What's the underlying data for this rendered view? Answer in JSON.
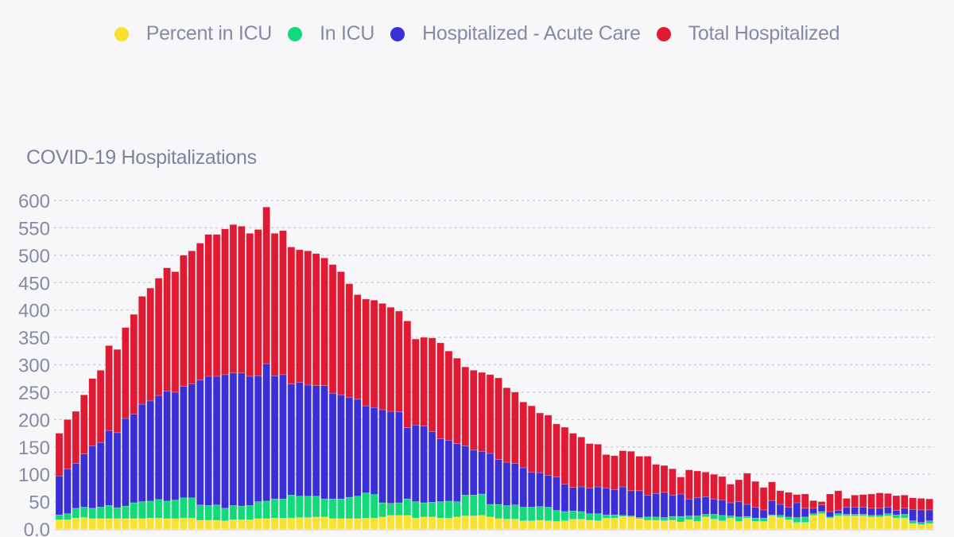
{
  "chart_data": {
    "type": "bar",
    "barmode": "stack",
    "title": "COVID-19 Hospitalizations",
    "xlabel": "",
    "ylabel": "",
    "ylim": [
      0,
      600
    ],
    "yticks": [
      "0.0",
      "50",
      "100",
      "150",
      "200",
      "250",
      "300",
      "350",
      "400",
      "450",
      "500",
      "550",
      "600"
    ],
    "ytick_values": [
      0,
      50,
      100,
      150,
      200,
      250,
      300,
      350,
      400,
      450,
      500,
      550,
      600
    ],
    "grid": true,
    "legend_position": "top-center",
    "legend": [
      {
        "name": "Percent in ICU",
        "color": "#f9e12f"
      },
      {
        "name": "In ICU",
        "color": "#12d97a"
      },
      {
        "name": "Hospitalized - Acute Care",
        "color": "#3a2fd6"
      },
      {
        "name": "Total Hospitalized",
        "color": "#e01a32"
      }
    ],
    "note": "Values are cumulative stack boundaries estimated from gridlines: top of yellow, top of green, top of blue, top of red (total).",
    "series": [
      {
        "name": "Percent in ICU",
        "values": [
          17,
          17,
          20,
          21,
          19,
          19,
          19,
          19,
          19,
          19,
          19,
          20,
          20,
          19,
          19,
          20,
          20,
          16,
          16,
          16,
          15,
          17,
          17,
          17,
          19,
          19,
          20,
          20,
          20,
          21,
          21,
          22,
          22,
          19,
          19,
          19,
          19,
          20,
          20,
          22,
          25,
          25,
          25,
          20,
          22,
          22,
          20,
          20,
          22,
          24,
          24,
          25,
          22,
          19,
          18,
          18,
          15,
          15,
          16,
          15,
          14,
          15,
          18,
          18,
          16,
          15,
          20,
          20,
          23,
          22,
          19,
          16,
          16,
          15,
          16,
          13,
          17,
          14,
          22,
          18,
          15,
          20,
          14,
          20,
          14,
          14,
          24,
          21,
          17,
          12,
          12,
          25,
          28,
          20,
          24,
          24,
          24,
          24,
          22,
          22,
          24,
          20,
          20,
          10,
          8,
          10
        ]
      },
      {
        "name": "In ICU",
        "values": [
          26,
          28,
          38,
          40,
          38,
          40,
          43,
          39,
          42,
          48,
          50,
          51,
          54,
          51,
          53,
          57,
          57,
          44,
          43,
          44,
          38,
          43,
          42,
          43,
          50,
          51,
          55,
          55,
          62,
          60,
          60,
          60,
          55,
          55,
          55,
          58,
          60,
          66,
          63,
          48,
          47,
          48,
          55,
          50,
          48,
          49,
          50,
          51,
          50,
          62,
          62,
          64,
          45,
          45,
          43,
          44,
          40,
          40,
          41,
          40,
          34,
          32,
          33,
          32,
          28,
          28,
          26,
          26,
          25,
          24,
          21,
          22,
          22,
          21,
          23,
          23,
          24,
          24,
          27,
          27,
          25,
          24,
          22,
          23,
          20,
          20,
          26,
          25,
          22,
          21,
          22,
          28,
          32,
          22,
          28,
          27,
          27,
          27,
          25,
          25,
          28,
          26,
          27,
          15,
          12,
          15
        ]
      },
      {
        "name": "Hospitalized - Acute Care",
        "values": [
          97,
          110,
          120,
          137,
          152,
          158,
          180,
          176,
          202,
          210,
          228,
          234,
          244,
          252,
          250,
          261,
          265,
          272,
          279,
          279,
          282,
          285,
          285,
          279,
          280,
          302,
          280,
          282,
          265,
          268,
          263,
          262,
          262,
          248,
          245,
          240,
          237,
          225,
          222,
          218,
          215,
          214,
          185,
          190,
          188,
          178,
          165,
          162,
          156,
          152,
          144,
          142,
          138,
          127,
          122,
          120,
          112,
          104,
          103,
          98,
          95,
          82,
          76,
          77,
          75,
          77,
          75,
          72,
          77,
          70,
          70,
          62,
          65,
          67,
          62,
          64,
          55,
          57,
          59,
          55,
          53,
          48,
          50,
          45,
          40,
          35,
          52,
          45,
          40,
          48,
          38,
          38,
          44,
          32,
          34,
          40,
          40,
          40,
          38,
          38,
          40,
          34,
          38,
          36,
          35,
          35
        ]
      },
      {
        "name": "Total Hospitalized",
        "values": [
          175,
          200,
          215,
          245,
          275,
          290,
          335,
          328,
          368,
          392,
          425,
          440,
          458,
          477,
          470,
          500,
          508,
          522,
          538,
          538,
          548,
          556,
          553,
          540,
          547,
          588,
          540,
          545,
          515,
          510,
          508,
          503,
          495,
          483,
          470,
          448,
          428,
          420,
          418,
          412,
          405,
          398,
          380,
          347,
          350,
          349,
          340,
          325,
          312,
          296,
          290,
          286,
          282,
          276,
          258,
          250,
          232,
          225,
          212,
          208,
          192,
          186,
          175,
          168,
          156,
          155,
          136,
          134,
          143,
          142,
          133,
          133,
          118,
          116,
          110,
          95,
          108,
          106,
          104,
          100,
          96,
          82,
          90,
          102,
          87,
          76,
          86,
          70,
          67,
          63,
          64,
          52,
          50,
          64,
          70,
          56,
          62,
          63,
          64,
          66,
          65,
          61,
          62,
          57,
          56,
          55
        ]
      }
    ]
  }
}
